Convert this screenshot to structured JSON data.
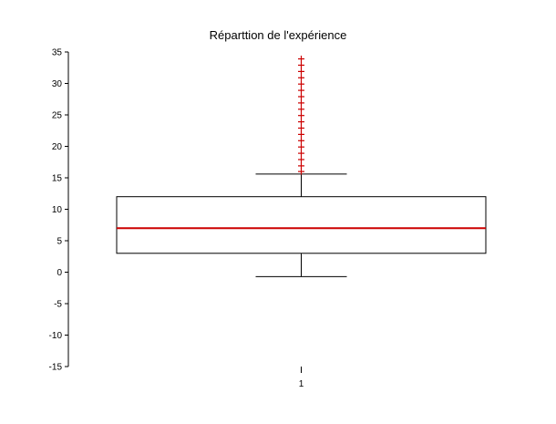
{
  "chart_data": {
    "type": "boxplot",
    "title": "Réparttion de l'expérience",
    "xlabel": "",
    "ylabel": "",
    "categories": [
      "1"
    ],
    "ylim": [
      -15,
      35
    ],
    "yticks": [
      35,
      30,
      25,
      20,
      15,
      10,
      5,
      0,
      -5,
      -10,
      -15
    ],
    "grid": false,
    "box": {
      "whisker_low": -0.7,
      "q1": 3,
      "median": 7,
      "q3": 12,
      "whisker_high": 15.6
    },
    "outliers": [
      16.0,
      16.9,
      17.9,
      18.9,
      19.9,
      20.9,
      21.9,
      22.9,
      23.9,
      24.9,
      25.9,
      26.9,
      27.9,
      28.9,
      29.9,
      30.9,
      31.9,
      32.9,
      33.9
    ],
    "colors": {
      "median": "#cc0000",
      "outlier": "#cc0000",
      "box": "#000000",
      "whisker": "#000000"
    }
  }
}
